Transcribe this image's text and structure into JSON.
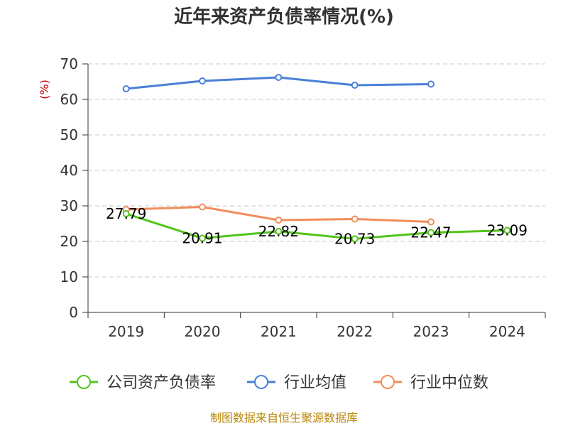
{
  "chart_data": {
    "type": "line",
    "title": "近年来资产负债率情况(%)",
    "ylabel": "(%)",
    "xlabel": "",
    "categories": [
      "2019",
      "2020",
      "2021",
      "2022",
      "2023",
      "2024"
    ],
    "ylim": [
      0,
      70
    ],
    "yticks": [
      0,
      10,
      20,
      30,
      40,
      50,
      60,
      70
    ],
    "grid": true,
    "legend_position": "bottom",
    "series": [
      {
        "name": "公司资产负债率",
        "color": "#52c41a",
        "values": [
          27.79,
          20.91,
          22.82,
          20.73,
          22.47,
          23.09
        ],
        "labels": [
          "27.79",
          "20.91",
          "22.82",
          "20.73",
          "22.47",
          "23.09"
        ]
      },
      {
        "name": "行业均值",
        "color": "#4a7fd8",
        "values": [
          63.0,
          65.2,
          66.2,
          64.0,
          64.3,
          null
        ]
      },
      {
        "name": "行业中位数",
        "color": "#f28c5a",
        "values": [
          29.0,
          29.7,
          26.0,
          26.3,
          25.5,
          null
        ]
      }
    ]
  },
  "footer": {
    "source": "制图数据来自恒生聚源数据库"
  }
}
